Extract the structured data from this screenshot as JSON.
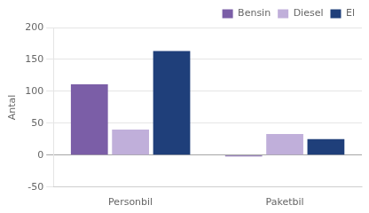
{
  "chart_data": {
    "type": "bar",
    "ylabel": "Antal",
    "categories": [
      "Personbil",
      "Paketbil"
    ],
    "series": [
      {
        "name": "Bensin",
        "color": "#7B5EA7",
        "values": [
          111,
          -2
        ]
      },
      {
        "name": "Diesel",
        "color": "#C0AFDA",
        "values": [
          40,
          33
        ]
      },
      {
        "name": "El",
        "color": "#1F3F7A",
        "values": [
          163,
          25
        ]
      }
    ],
    "ylim": [
      -50,
      200
    ],
    "yticks": [
      -50,
      0,
      50,
      100,
      150,
      200
    ],
    "grid": true,
    "legend": "upper right"
  }
}
